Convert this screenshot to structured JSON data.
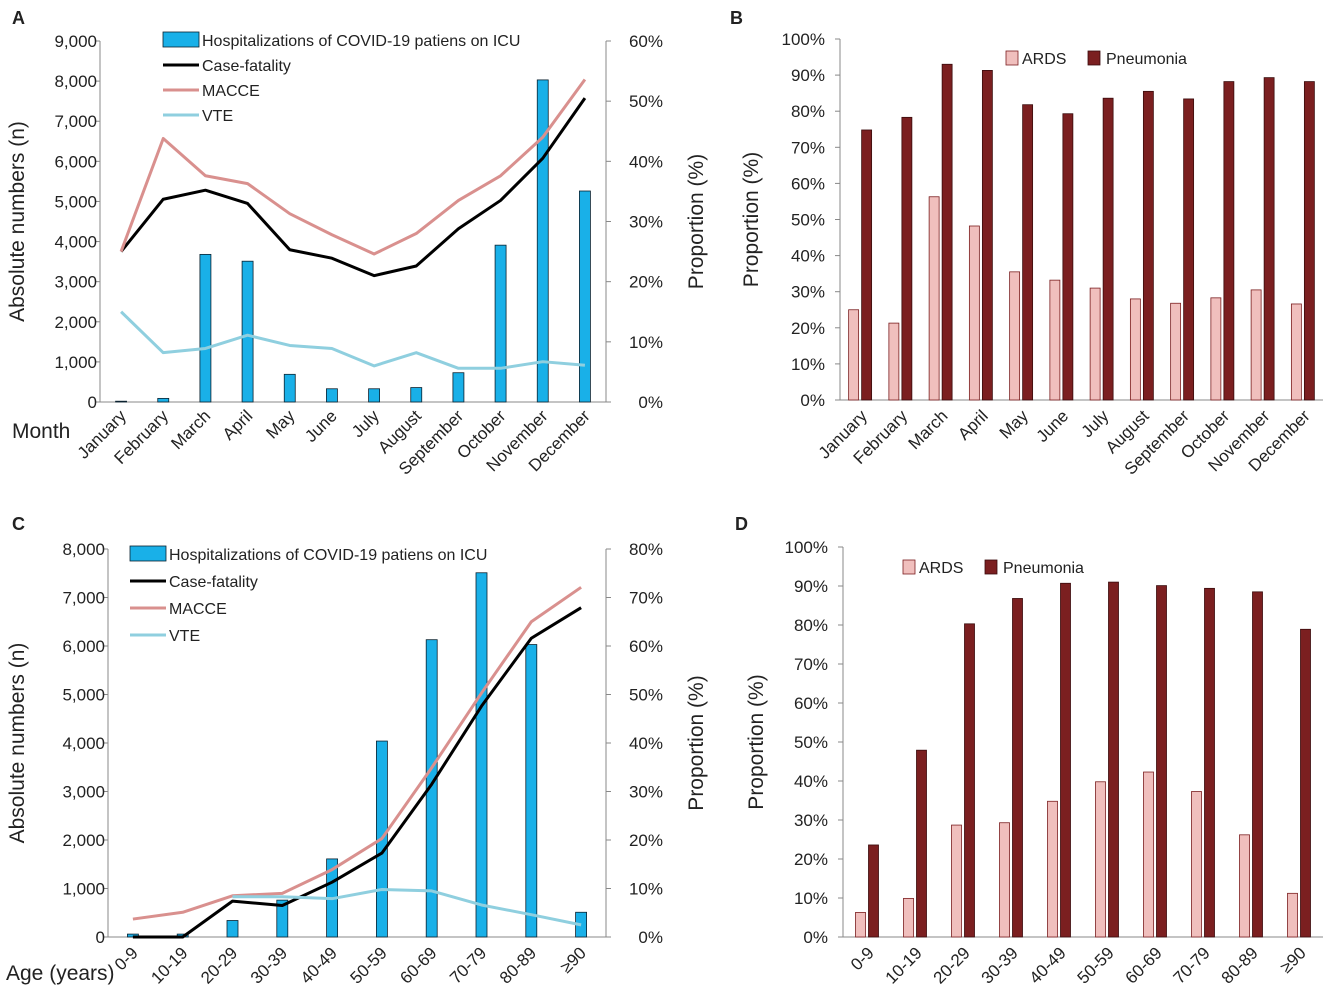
{
  "colors": {
    "hosp_bar": "#19b0e8",
    "case_fatality": "#000000",
    "macce": "#d9908e",
    "vte": "#8fcfdf",
    "ards": "#f0bfbd",
    "pneumonia": "#7b1f20",
    "axis": "#888888",
    "text": "#222222"
  },
  "chart_data": [
    {
      "panel": "A",
      "type": "bar+line",
      "xlabel": "Month",
      "ylabel_left": "Absolute numbers (n)",
      "ylabel_right": "Proportion (%)",
      "left_ticks": [
        "0",
        "1,000",
        "2,000",
        "3,000",
        "4,000",
        "5,000",
        "6,000",
        "7,000",
        "8,000",
        "9,000"
      ],
      "right_ticks": [
        "0%",
        "10%",
        "20%",
        "30%",
        "40%",
        "50%",
        "60%"
      ],
      "ylim_left": [
        0,
        9000
      ],
      "ylim_right": [
        0,
        60
      ],
      "categories": [
        "January",
        "February",
        "March",
        "April",
        "May",
        "June",
        "July",
        "August",
        "September",
        "October",
        "November",
        "December"
      ],
      "bars": {
        "name": "Hospitalizations of COVID-19 patiens on ICU",
        "values": [
          20,
          90,
          3680,
          3510,
          690,
          330,
          330,
          360,
          730,
          3910,
          8030,
          5260
        ]
      },
      "lines": [
        {
          "name": "Case-fatality",
          "key": "case_fatality",
          "values": [
            25.0,
            33.7,
            35.2,
            33.0,
            25.3,
            23.9,
            21.0,
            22.6,
            28.8,
            33.5,
            40.5,
            50.5
          ]
        },
        {
          "name": "MACCE",
          "key": "macce",
          "values": [
            25.0,
            43.8,
            37.6,
            36.3,
            31.3,
            27.8,
            24.6,
            28.0,
            33.5,
            37.6,
            44.0,
            53.6
          ]
        },
        {
          "name": "VTE",
          "key": "vte",
          "values": [
            15.0,
            8.2,
            8.9,
            11.1,
            9.4,
            8.9,
            6.0,
            8.2,
            5.6,
            5.6,
            6.7,
            6.1
          ]
        }
      ],
      "legend": [
        "Hospitalizations of COVID-19 patiens on ICU",
        "Case-fatality",
        "MACCE",
        "VTE"
      ]
    },
    {
      "panel": "B",
      "type": "bar",
      "ylabel": "Proportion (%)",
      "ticks": [
        "0%",
        "10%",
        "20%",
        "30%",
        "40%",
        "50%",
        "60%",
        "70%",
        "80%",
        "90%",
        "100%"
      ],
      "ylim": [
        0,
        100
      ],
      "categories": [
        "January",
        "February",
        "March",
        "April",
        "May",
        "June",
        "July",
        "August",
        "September",
        "October",
        "November",
        "December"
      ],
      "series": [
        {
          "name": "ARDS",
          "key": "ards",
          "values": [
            25.0,
            21.3,
            56.3,
            48.2,
            35.5,
            33.2,
            31.0,
            28.0,
            26.8,
            28.3,
            30.5,
            26.6
          ]
        },
        {
          "name": "Pneumonia",
          "key": "pneumonia",
          "values": [
            74.8,
            78.3,
            93.0,
            91.3,
            81.8,
            79.3,
            83.6,
            85.5,
            83.4,
            88.2,
            89.3,
            88.2
          ]
        }
      ],
      "legend": [
        "ARDS",
        "Pneumonia"
      ]
    },
    {
      "panel": "C",
      "type": "bar+line",
      "xlabel": "Age (years)",
      "ylabel_left": "Absolute numbers (n)",
      "ylabel_right": "Proportion (%)",
      "left_ticks": [
        "0",
        "1,000",
        "2,000",
        "3,000",
        "4,000",
        "5,000",
        "6,000",
        "7,000",
        "8,000"
      ],
      "right_ticks": [
        "0%",
        "10%",
        "20%",
        "30%",
        "40%",
        "50%",
        "60%",
        "70%",
        "80%"
      ],
      "ylim_left": [
        0,
        8000
      ],
      "ylim_right": [
        0,
        80
      ],
      "categories": [
        "0-9",
        "10-19",
        "20-29",
        "30-39",
        "40-49",
        "50-59",
        "60-69",
        "70-79",
        "80-89",
        "≥90"
      ],
      "bars": {
        "name": "Hospitalizations of COVID-19 patiens on ICU",
        "values": [
          60,
          60,
          340,
          760,
          1610,
          4040,
          6130,
          7510,
          6030,
          510
        ]
      },
      "lines": [
        {
          "name": "Case-fatality",
          "key": "case_fatality",
          "values": [
            0.0,
            0.0,
            7.4,
            6.5,
            11.3,
            17.3,
            31.5,
            47.6,
            61.6,
            67.9
          ]
        },
        {
          "name": "MACCE",
          "key": "macce",
          "values": [
            3.7,
            5.1,
            8.5,
            9.0,
            13.9,
            20.3,
            34.9,
            50.3,
            65.0,
            72.1
          ]
        },
        {
          "name": "VTE",
          "key": "vte",
          "values": null
        }
      ],
      "vte_values": [
        null,
        null,
        8.3,
        8.3,
        7.9,
        9.8,
        9.5,
        6.6,
        4.6,
        2.5
      ],
      "legend": [
        "Hospitalizations of COVID-19 patiens on ICU",
        "Case-fatality",
        "MACCE",
        "VTE"
      ]
    },
    {
      "panel": "D",
      "type": "bar",
      "ylabel": "Proportion (%)",
      "ticks": [
        "0%",
        "10%",
        "20%",
        "30%",
        "40%",
        "50%",
        "60%",
        "70%",
        "80%",
        "90%",
        "100%"
      ],
      "ylim": [
        0,
        100
      ],
      "categories": [
        "0-9",
        "10-19",
        "20-29",
        "30-39",
        "40-49",
        "50-59",
        "60-69",
        "70-79",
        "80-89",
        "≥90"
      ],
      "series": [
        {
          "name": "ARDS",
          "key": "ards",
          "values": [
            6.3,
            9.9,
            28.7,
            29.3,
            34.8,
            39.8,
            42.3,
            37.3,
            26.2,
            11.2
          ]
        },
        {
          "name": "Pneumonia",
          "key": "pneumonia",
          "values": [
            23.6,
            47.9,
            80.3,
            86.8,
            90.7,
            91.0,
            90.1,
            89.4,
            88.5,
            78.9
          ]
        }
      ],
      "legend": [
        "ARDS",
        "Pneumonia"
      ]
    }
  ]
}
